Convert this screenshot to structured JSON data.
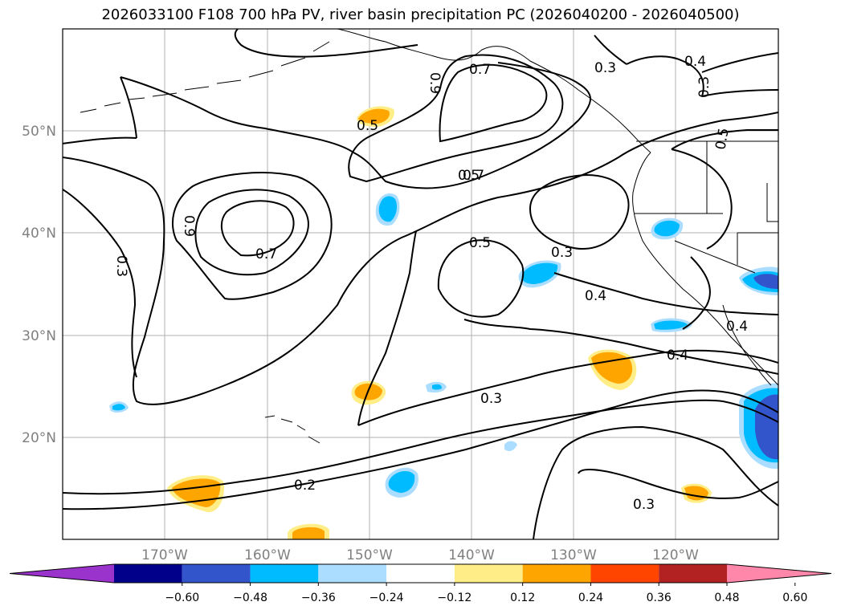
{
  "title": "2026033100 F108 700 hPa PV, river basin precipitation PC (2026040200 - 2026040500)",
  "lat_labels": [
    "50°N",
    "40°N",
    "30°N",
    "20°N"
  ],
  "lon_labels": [
    "170°W",
    "160°W",
    "150°W",
    "140°W",
    "130°W",
    "120°W"
  ],
  "contour_labels": [
    "0.7",
    "0.9",
    "0.5",
    "0.7",
    "0.5",
    "0.3",
    "0.4",
    "0.3",
    "0.5",
    "0.9",
    "0.7",
    "0.3",
    "0.5",
    "0.3",
    "0.4",
    "0.4",
    "0.3",
    "0.2",
    "0.3",
    "0.4"
  ],
  "colorbar": {
    "colors": [
      "#9933cc",
      "#00008b",
      "#3355cc",
      "#00bbff",
      "#aaddff",
      "#ffffff",
      "#ffee88",
      "#ffa500",
      "#ff4500",
      "#b22222",
      "#ff88aa"
    ],
    "tick_labels": [
      "−0.60",
      "−0.48",
      "−0.36",
      "−0.24",
      "−0.12",
      "0.12",
      "0.24",
      "0.36",
      "0.48",
      "0.60"
    ]
  },
  "colors": {
    "orange": "#ffa500",
    "light_yellow": "#ffee88",
    "cyan": "#00bbff",
    "light_blue": "#aaddff",
    "blue": "#3355cc"
  }
}
